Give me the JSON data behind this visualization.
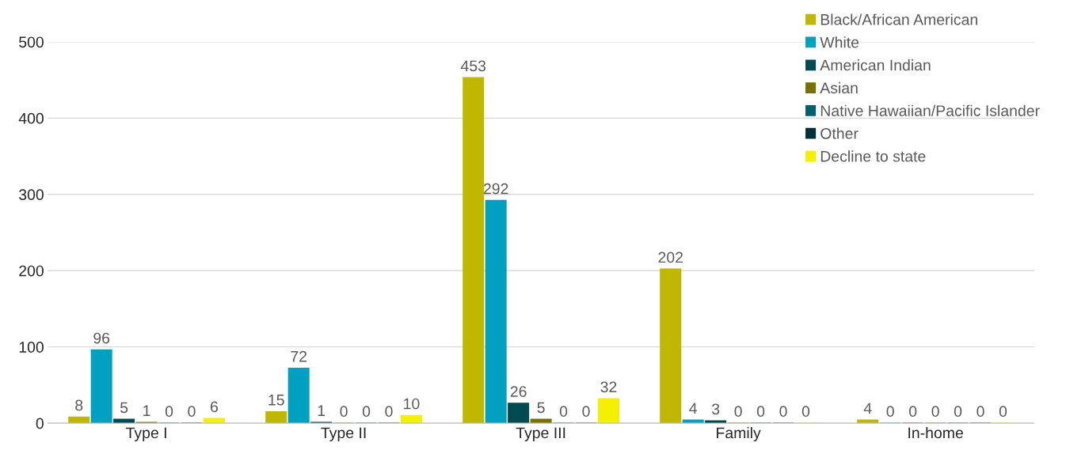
{
  "chart_data": {
    "type": "bar",
    "categories": [
      "Type I",
      "Type II",
      "Type III",
      "Family",
      "In-home"
    ],
    "series": [
      {
        "name": "Black/African American",
        "color": "#c0b800",
        "values": [
          8,
          15,
          453,
          202,
          4
        ]
      },
      {
        "name": "White",
        "color": "#00a0c0",
        "values": [
          96,
          72,
          292,
          4,
          0
        ]
      },
      {
        "name": "American Indian",
        "color": "#004a50",
        "values": [
          5,
          1,
          26,
          3,
          0
        ]
      },
      {
        "name": "Asian",
        "color": "#7a7000",
        "values": [
          1,
          0,
          5,
          0,
          0
        ]
      },
      {
        "name": "Native Hawaiian/Pacific Islander",
        "color": "#006070",
        "values": [
          0,
          0,
          0,
          0,
          0
        ]
      },
      {
        "name": "Other",
        "color": "#003038",
        "values": [
          0,
          0,
          0,
          0,
          0
        ]
      },
      {
        "name": "Decline to state",
        "color": "#f5f000",
        "values": [
          6,
          10,
          32,
          0,
          0
        ]
      }
    ],
    "ylim": [
      0,
      500
    ],
    "yticks": [
      0,
      100,
      200,
      300,
      400,
      500
    ],
    "grid": "y",
    "legend": "top right",
    "data_labels": true
  }
}
